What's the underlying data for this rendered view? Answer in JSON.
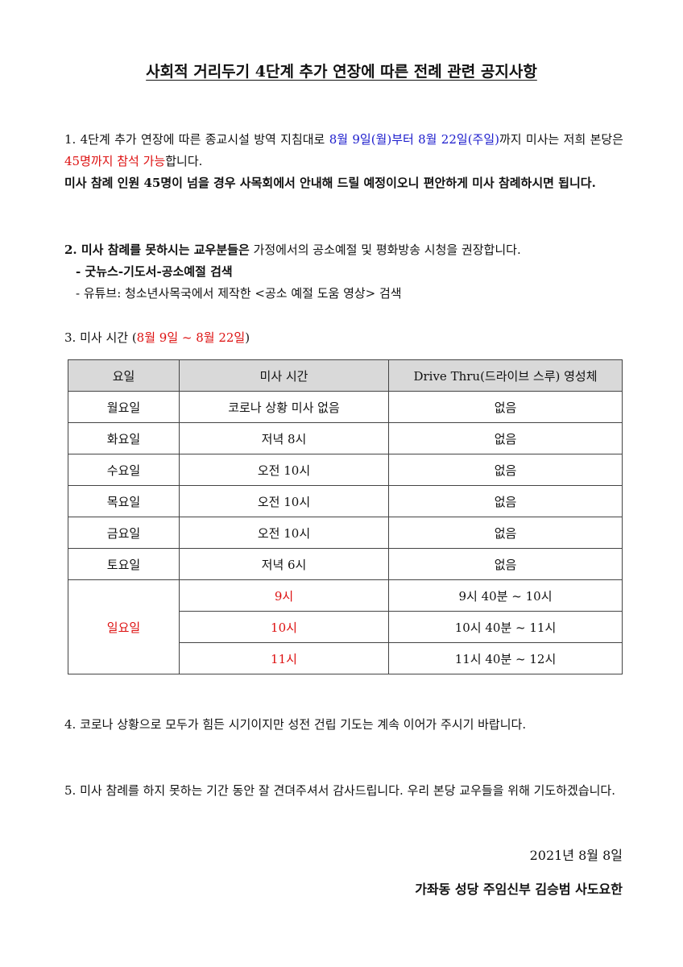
{
  "title": "사회적 거리두기 4단계 추가 연장에 따른 전례 관련 공지사항",
  "p1": {
    "a": "1. 4단계 추가 연장에 따른 종교시설 방역 지침대로 ",
    "b": "8월 9일(월)부터 8월 22일(주일)",
    "c": "까지 미사는 저희 본당은 ",
    "d": "45명까지 참석 가능",
    "e": "합니다.",
    "f": "미사 참례 인원 45명이 넘을 경우 사목회에서 안내해 드릴 예정이오니 편안하게 미사 참례하시면 됩니다."
  },
  "p2": {
    "a": "2. 미사 참례를 못하시는 교우분들은",
    "b": " 가정에서의 공소예절 및 평화방송 시청을 권장합니다.",
    "l1": "- 굿뉴스-기도서-공소예절 검색",
    "l2": "- 유튜브: 청소년사목국에서 제작한  <공소 예절 도움 영상> 검색"
  },
  "p3": {
    "a": "3. 미사 시간 (",
    "b": "8월 9일 ~ 8월 22일",
    "c": ")"
  },
  "table": {
    "headers": [
      "요일",
      "미사 시간",
      "Drive Thru(드라이브 스루) 영성체"
    ],
    "rows": [
      [
        "월요일",
        "코로나 상황 미사 없음",
        "없음"
      ],
      [
        "화요일",
        "저녁 8시",
        "없음"
      ],
      [
        "수요일",
        "오전 10시",
        "없음"
      ],
      [
        "목요일",
        "오전 10시",
        "없음"
      ],
      [
        "금요일",
        "오전 10시",
        "없음"
      ],
      [
        "토요일",
        "저녁 6시",
        "없음"
      ]
    ],
    "sunday": {
      "day": "일요일",
      "times": [
        "9시",
        "10시",
        "11시"
      ],
      "drive": [
        "9시 40분 ~ 10시",
        "10시 40분 ~ 11시",
        "11시 40분 ~ 12시"
      ]
    }
  },
  "p4": "4. 코로나 상황으로 모두가 힘든 시기이지만 성전 건립 기도는 계속 이어가 주시기 바랍니다.",
  "p5": "5. 미사 참례를 하지 못하는 기간 동안 잘 견뎌주셔서 감사드립니다. 우리 본당 교우들을 위해 기도하겠습니다.",
  "date": "2021년 8월 8일",
  "signature": "가좌동 성당 주임신부 김승범 사도요한",
  "colors": {
    "blue": "#1a1acc",
    "red": "#dd1111",
    "header_bg": "#d9d9d9"
  }
}
